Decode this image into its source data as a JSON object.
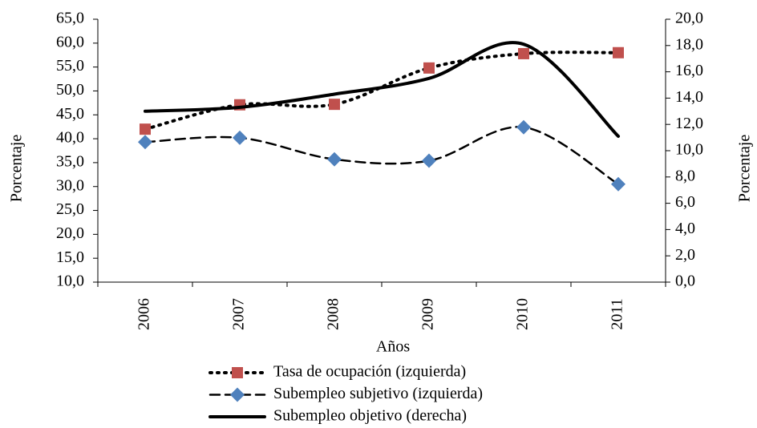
{
  "chart_data": {
    "type": "line",
    "x_label": "Años",
    "y_label": "Porcentaje",
    "y2_label": "Porcentaje",
    "categories": [
      "2006",
      "2007",
      "2008",
      "2009",
      "2010",
      "2011"
    ],
    "ylim": [
      10,
      65
    ],
    "yticks": [
      {
        "value": 10,
        "label": "10,0"
      },
      {
        "value": 15,
        "label": "15,0"
      },
      {
        "value": 20,
        "label": "20,0"
      },
      {
        "value": 25,
        "label": "25,0"
      },
      {
        "value": 30,
        "label": "30,0"
      },
      {
        "value": 35,
        "label": "35,0"
      },
      {
        "value": 40,
        "label": "40,0"
      },
      {
        "value": 45,
        "label": "45,0"
      },
      {
        "value": 50,
        "label": "50,0"
      },
      {
        "value": 55,
        "label": "55,0"
      },
      {
        "value": 60,
        "label": "60,0"
      },
      {
        "value": 65,
        "label": "65,0"
      }
    ],
    "y2lim": [
      0,
      20
    ],
    "y2ticks": [
      {
        "value": 0,
        "label": "0,0"
      },
      {
        "value": 2,
        "label": "2,0"
      },
      {
        "value": 4,
        "label": "4,0"
      },
      {
        "value": 6,
        "label": "6,0"
      },
      {
        "value": 8,
        "label": "8,0"
      },
      {
        "value": 10,
        "label": "10,0"
      },
      {
        "value": 12,
        "label": "12,0"
      },
      {
        "value": 14,
        "label": "14,0"
      },
      {
        "value": 16,
        "label": "16,0"
      },
      {
        "value": 18,
        "label": "18,0"
      },
      {
        "value": 20,
        "label": "20,0"
      }
    ],
    "legend": "bottom",
    "series": [
      {
        "name": "Tasa de ocupación (izquierda)",
        "color": "#c0504d",
        "line_color": "#000000",
        "dash": "dotted",
        "marker": "square",
        "values": [
          42.0,
          47.1,
          47.2,
          54.8,
          57.8,
          58.0
        ]
      },
      {
        "name": "Subempleo subjetivo (izquierda)",
        "color": "#4f81bd",
        "line_color": "#000000",
        "dash": "dashed",
        "marker": "diamond",
        "values": [
          39.3,
          40.2,
          35.7,
          35.4,
          42.4,
          30.5
        ]
      },
      {
        "name": "Subempleo objetivo (derecha)",
        "color": "#000000",
        "line_color": "#000000",
        "dash": "solid",
        "marker": "none",
        "axis": "y2",
        "values": [
          13.0,
          13.3,
          14.3,
          15.5,
          18.1,
          11.1
        ]
      }
    ]
  }
}
